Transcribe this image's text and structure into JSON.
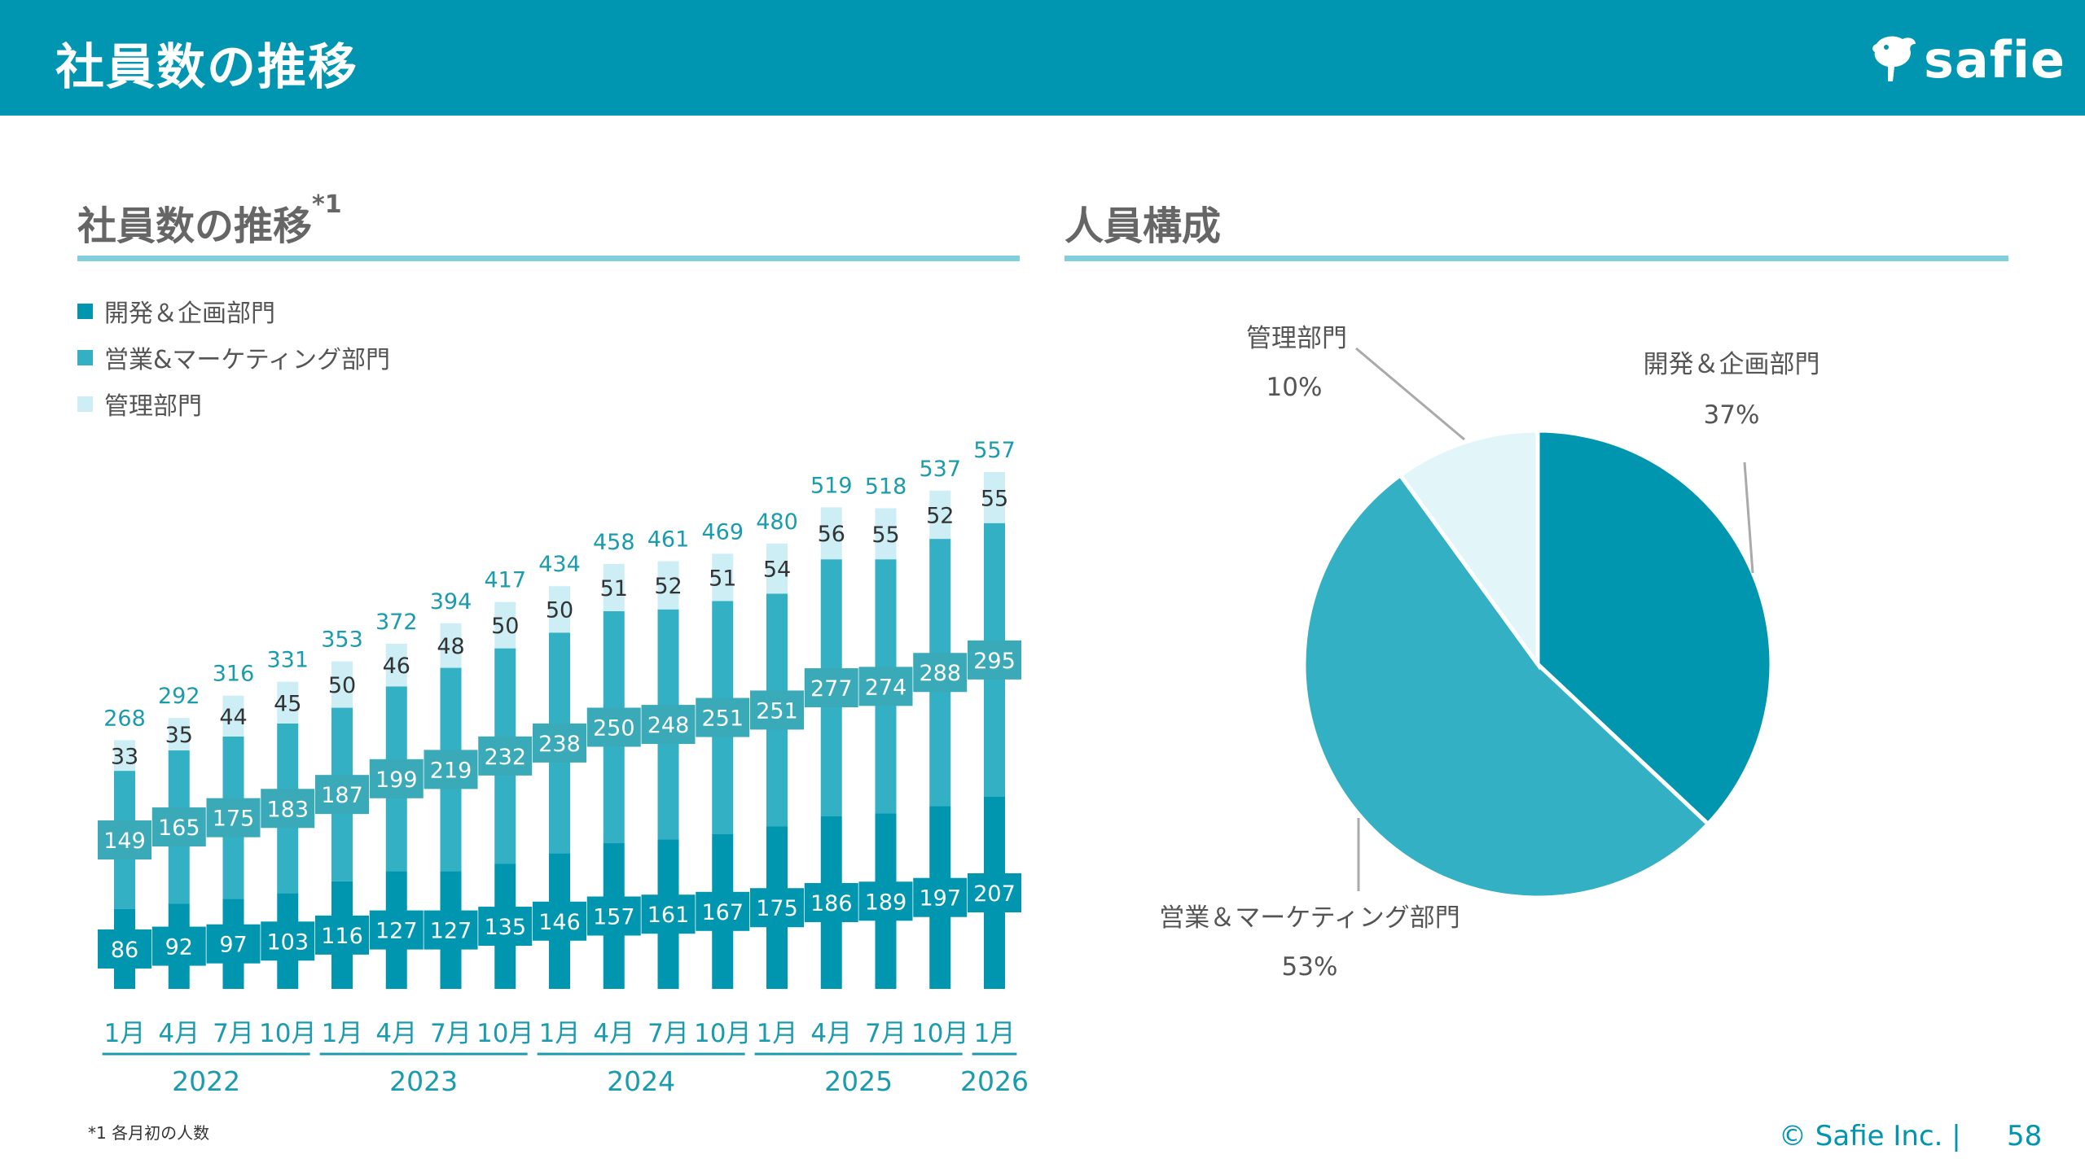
{
  "header": {
    "title": "社員数の推移",
    "logo_text": "safie"
  },
  "left_section": {
    "title": "社員数の推移",
    "title_note": "*1"
  },
  "right_section": {
    "title": "人員構成"
  },
  "colors": {
    "header": "#0095B0",
    "dev": "#0096B0",
    "sales": "#33B0C4",
    "admin": "#CDEEF5",
    "sales_label_box": "#3AA9B8",
    "total_text": "#1A9BAE",
    "rule": "#7FD0DA"
  },
  "legend": [
    {
      "label": "開発＆企画部門",
      "color": "#0096B0"
    },
    {
      "label": "営業&マーケティング部門",
      "color": "#33B0C4"
    },
    {
      "label": "管理部門",
      "color": "#CDEEF5"
    }
  ],
  "chart_data": [
    {
      "type": "bar",
      "stacked": true,
      "categories": [
        "1月",
        "4月",
        "7月",
        "10月",
        "1月",
        "4月",
        "7月",
        "10月",
        "1月",
        "4月",
        "7月",
        "10月",
        "1月",
        "4月",
        "7月",
        "10月",
        "1月"
      ],
      "year_groups": [
        {
          "label": "2022",
          "count": 4
        },
        {
          "label": "2023",
          "count": 4
        },
        {
          "label": "2024",
          "count": 4
        },
        {
          "label": "2025",
          "count": 4
        },
        {
          "label": "2026",
          "count": 1
        }
      ],
      "series": [
        {
          "name": "開発＆企画部門",
          "values": [
            86,
            92,
            97,
            103,
            116,
            127,
            127,
            135,
            146,
            157,
            161,
            167,
            175,
            186,
            189,
            197,
            207
          ]
        },
        {
          "name": "営業&マーケティング部門",
          "values": [
            149,
            165,
            175,
            183,
            187,
            199,
            219,
            232,
            238,
            250,
            248,
            251,
            251,
            277,
            274,
            288,
            295
          ]
        },
        {
          "name": "管理部門",
          "values": [
            33,
            35,
            44,
            45,
            50,
            46,
            48,
            50,
            50,
            51,
            52,
            51,
            54,
            56,
            55,
            52,
            55
          ]
        }
      ],
      "totals": [
        268,
        292,
        316,
        331,
        353,
        372,
        394,
        417,
        434,
        458,
        461,
        469,
        480,
        519,
        518,
        537,
        557
      ],
      "ylim": [
        0,
        557
      ],
      "grid": false,
      "legend_position": "top-left"
    },
    {
      "type": "pie",
      "slices": [
        {
          "label": "開発＆企画部門",
          "percent_label": "37%",
          "value": 37
        },
        {
          "label": "営業＆マーケティング部門",
          "percent_label": "53%",
          "value": 53
        },
        {
          "label": "管理部門",
          "percent_label": "10%",
          "value": 10
        }
      ]
    }
  ],
  "footnote": "*1 各月初の人数",
  "footer": {
    "copyright": "© Safie Inc.  |",
    "page_number": "58"
  }
}
